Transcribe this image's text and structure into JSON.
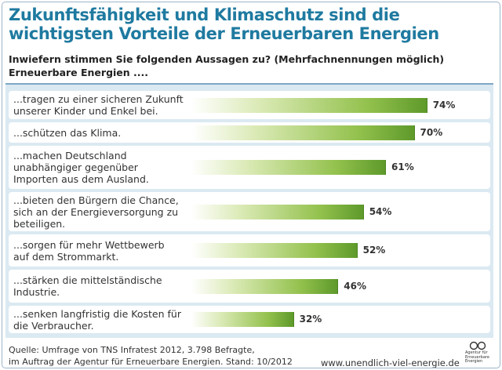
{
  "header": {
    "title_line1": "Zukunftsfähigkeit und Klimaschutz sind die",
    "title_line2": "wichtigsten Vorteile der Erneuerbaren Energien",
    "question": "Inwiefern stimmen Sie folgenden Aussagen zu?  (Mehrfachnennungen möglich)",
    "lead_in": "Erneuerbare Energien ...."
  },
  "chart_data": {
    "type": "bar",
    "orientation": "horizontal",
    "unit": "%",
    "categories": [
      "...tragen zu einer sicheren Zukunft\nunserer Kinder und Enkel bei.",
      "...schützen das Klima.",
      "...machen Deutschland\nunabhängiger gegenüber\nImporten aus dem Ausland.",
      "...bieten den Bürgern die Chance,\nsich an der Energieversorgung zu\nbeteiligen.",
      "...sorgen für mehr Wettbewerb\nauf dem Strommarkt.",
      "...stärken die mittelständische\nIndustrie.",
      "...senken langfristig die Kosten für\ndie Verbraucher."
    ],
    "values": [
      74,
      70,
      61,
      54,
      52,
      46,
      32
    ],
    "value_labels": [
      "74%",
      "70%",
      "61%",
      "54%",
      "52%",
      "46%",
      "32%"
    ],
    "colors": {
      "bar_start": "#ffffff",
      "bar_end": "#5e9a2b",
      "title": "#1f7aa0",
      "panel": "#dbe9f2"
    }
  },
  "footer": {
    "source_line1": "Quelle: Umfrage von TNS Infratest 2012, 3.798 Befragte,",
    "source_line2": "im Auftrag der Agentur für Erneuerbare Energien. Stand: 10/2012",
    "website": "www.unendlich-viel-energie.de",
    "logo_line1": "Agentur für",
    "logo_line2": "Erneuerbare",
    "logo_line3": "Energien"
  }
}
